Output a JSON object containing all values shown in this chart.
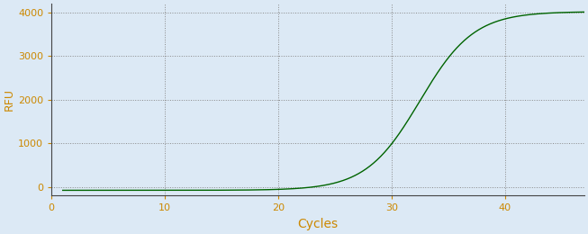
{
  "xlabel": "Cycles",
  "ylabel": "RFU",
  "line_color": "#006400",
  "background_color": "#dce9f5",
  "plot_bg_color": "#dce9f5",
  "grid_color": "#888888",
  "xlim": [
    0,
    47
  ],
  "ylim": [
    -200,
    4200
  ],
  "xticks": [
    0,
    10,
    20,
    30,
    40
  ],
  "yticks": [
    0,
    1000,
    2000,
    3000,
    4000
  ],
  "sigmoid_L": 4100,
  "sigmoid_k": 0.42,
  "sigmoid_x0": 32.5,
  "x_start": 1,
  "x_end": 47,
  "label_color": "#cc8800",
  "tick_color": "#cc8800",
  "spine_color": "#444444",
  "figsize": [
    6.53,
    2.6
  ],
  "dpi": 100
}
